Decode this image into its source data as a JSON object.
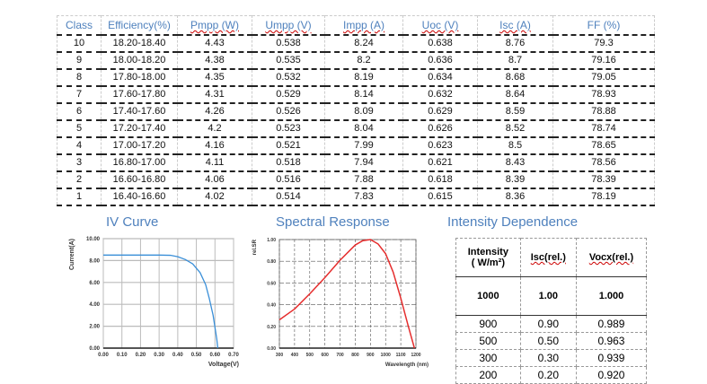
{
  "table": {
    "headers": [
      "Class",
      "Efficiency(%)",
      "Pmpp (W)",
      "Umpp (V)",
      "Impp (A)",
      "Uoc (V)",
      "Isc (A)",
      "FF (%)"
    ],
    "rows": [
      [
        "10",
        "18.20-18.40",
        "4.43",
        "0.538",
        "8.24",
        "0.638",
        "8.76",
        "79.3"
      ],
      [
        "9",
        "18.00-18.20",
        "4.38",
        "0.535",
        "8.2",
        "0.636",
        "8.7",
        "79.16"
      ],
      [
        "8",
        "17.80-18.00",
        "4.35",
        "0.532",
        "8.19",
        "0.634",
        "8.68",
        "79.05"
      ],
      [
        "7",
        "17.60-17.80",
        "4.31",
        "0.529",
        "8.14",
        "0.632",
        "8.64",
        "78.93"
      ],
      [
        "6",
        "17.40-17.60",
        "4.26",
        "0.526",
        "8.09",
        "0.629",
        "8.59",
        "78.88"
      ],
      [
        "5",
        "17.20-17.40",
        "4.2",
        "0.523",
        "8.04",
        "0.626",
        "8.52",
        "78.74"
      ],
      [
        "4",
        "17.00-17.20",
        "4.16",
        "0.521",
        "7.99",
        "0.623",
        "8.5",
        "78.65"
      ],
      [
        "3",
        "16.80-17.00",
        "4.11",
        "0.518",
        "7.94",
        "0.621",
        "8.43",
        "78.56"
      ],
      [
        "2",
        "16.60-16.80",
        "4.06",
        "0.516",
        "7.88",
        "0.618",
        "8.39",
        "78.39"
      ],
      [
        "1",
        "16.40-16.60",
        "4.02",
        "0.514",
        "7.83",
        "0.615",
        "8.36",
        "78.19"
      ]
    ]
  },
  "titles": {
    "iv": "IV Curve",
    "spectral": "Spectral Response",
    "intensity": "Intensity Dependence"
  },
  "intensity": {
    "headers": [
      "Intensity",
      "( W/m²)",
      "Isc(rel.)",
      "Vocx(rel.)"
    ],
    "rows": [
      [
        "1000",
        "1.00",
        "1.000"
      ],
      [
        "900",
        "0.90",
        "0.989"
      ],
      [
        "500",
        "0.50",
        "0.963"
      ],
      [
        "300",
        "0.30",
        "0.939"
      ],
      [
        "200",
        "0.20",
        "0.920"
      ]
    ]
  },
  "chart_data": [
    {
      "type": "line",
      "title": "IV Curve",
      "xlabel": "Voltage(V)",
      "ylabel": "Current(A)",
      "xlim": [
        0,
        0.7
      ],
      "ylim": [
        0,
        10
      ],
      "xticks": [
        "0.00",
        "0.10",
        "0.20",
        "0.30",
        "0.40",
        "0.50",
        "0.60",
        "0.70"
      ],
      "yticks": [
        "0.00",
        "2.00",
        "4.00",
        "6.00",
        "8.00",
        "10.00"
      ],
      "x": [
        0,
        0.1,
        0.2,
        0.3,
        0.36,
        0.4,
        0.44,
        0.48,
        0.52,
        0.55,
        0.57,
        0.59,
        0.6,
        0.61,
        0.615
      ],
      "y": [
        8.5,
        8.5,
        8.5,
        8.5,
        8.48,
        8.35,
        8.1,
        7.7,
        6.9,
        5.8,
        4.5,
        3.0,
        1.9,
        0.8,
        0
      ],
      "color": "#3a8fd8",
      "grid": true
    },
    {
      "type": "line",
      "title": "Spectral Response",
      "xlabel": "Wavelength (nm)",
      "ylabel": "rel.SR",
      "xlim": [
        300,
        1200
      ],
      "ylim": [
        0,
        1
      ],
      "xticks": [
        "300",
        "400",
        "500",
        "600",
        "700",
        "800",
        "900",
        "1000",
        "1100",
        "1200"
      ],
      "yticks": [
        "0.00",
        "0.20",
        "0.40",
        "0.60",
        "0.80",
        "1.00"
      ],
      "x": [
        300,
        400,
        500,
        600,
        700,
        800,
        850,
        900,
        950,
        1000,
        1050,
        1100,
        1150,
        1190
      ],
      "y": [
        0.26,
        0.36,
        0.5,
        0.65,
        0.81,
        0.95,
        0.99,
        1.0,
        0.96,
        0.87,
        0.7,
        0.46,
        0.2,
        0
      ],
      "color": "#e52d2d",
      "grid": true
    }
  ]
}
